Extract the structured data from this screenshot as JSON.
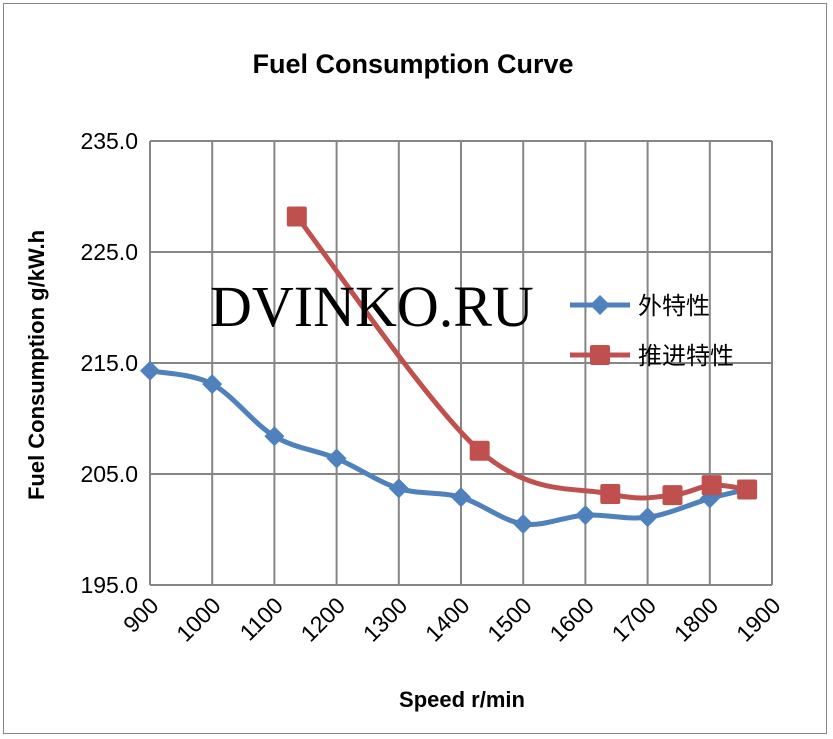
{
  "chart_data": {
    "type": "line",
    "title": "Fuel Consumption Curve",
    "xlabel": "Speed r/min",
    "ylabel": "Fuel Consumption g/kW.h",
    "xlim": [
      900,
      1900
    ],
    "ylim": [
      195,
      235
    ],
    "x_ticks": [
      "900",
      "1000",
      "1100",
      "1200",
      "1300",
      "1400",
      "1500",
      "1600",
      "1700",
      "1800",
      "1900"
    ],
    "y_ticks": [
      "195.0",
      "205.0",
      "215.0",
      "225.0",
      "235.0"
    ],
    "grid": true,
    "legend_position": "right",
    "watermark": "DVINKO.RU",
    "series": [
      {
        "name": "外特性",
        "color": "#4F81BD",
        "marker": "diamond",
        "x": [
          900,
          1000,
          1100,
          1200,
          1300,
          1400,
          1500,
          1600,
          1700,
          1800,
          1860
        ],
        "y": [
          214.3,
          213.1,
          208.4,
          206.4,
          203.7,
          202.9,
          200.5,
          201.3,
          201.1,
          202.8,
          203.6
        ]
      },
      {
        "name": "推进特性",
        "color": "#C0504D",
        "marker": "square",
        "x": [
          1136,
          1430,
          1640,
          1740,
          1803,
          1860
        ],
        "y": [
          228.2,
          207.1,
          203.2,
          203.1,
          204.0,
          203.6
        ]
      }
    ]
  }
}
